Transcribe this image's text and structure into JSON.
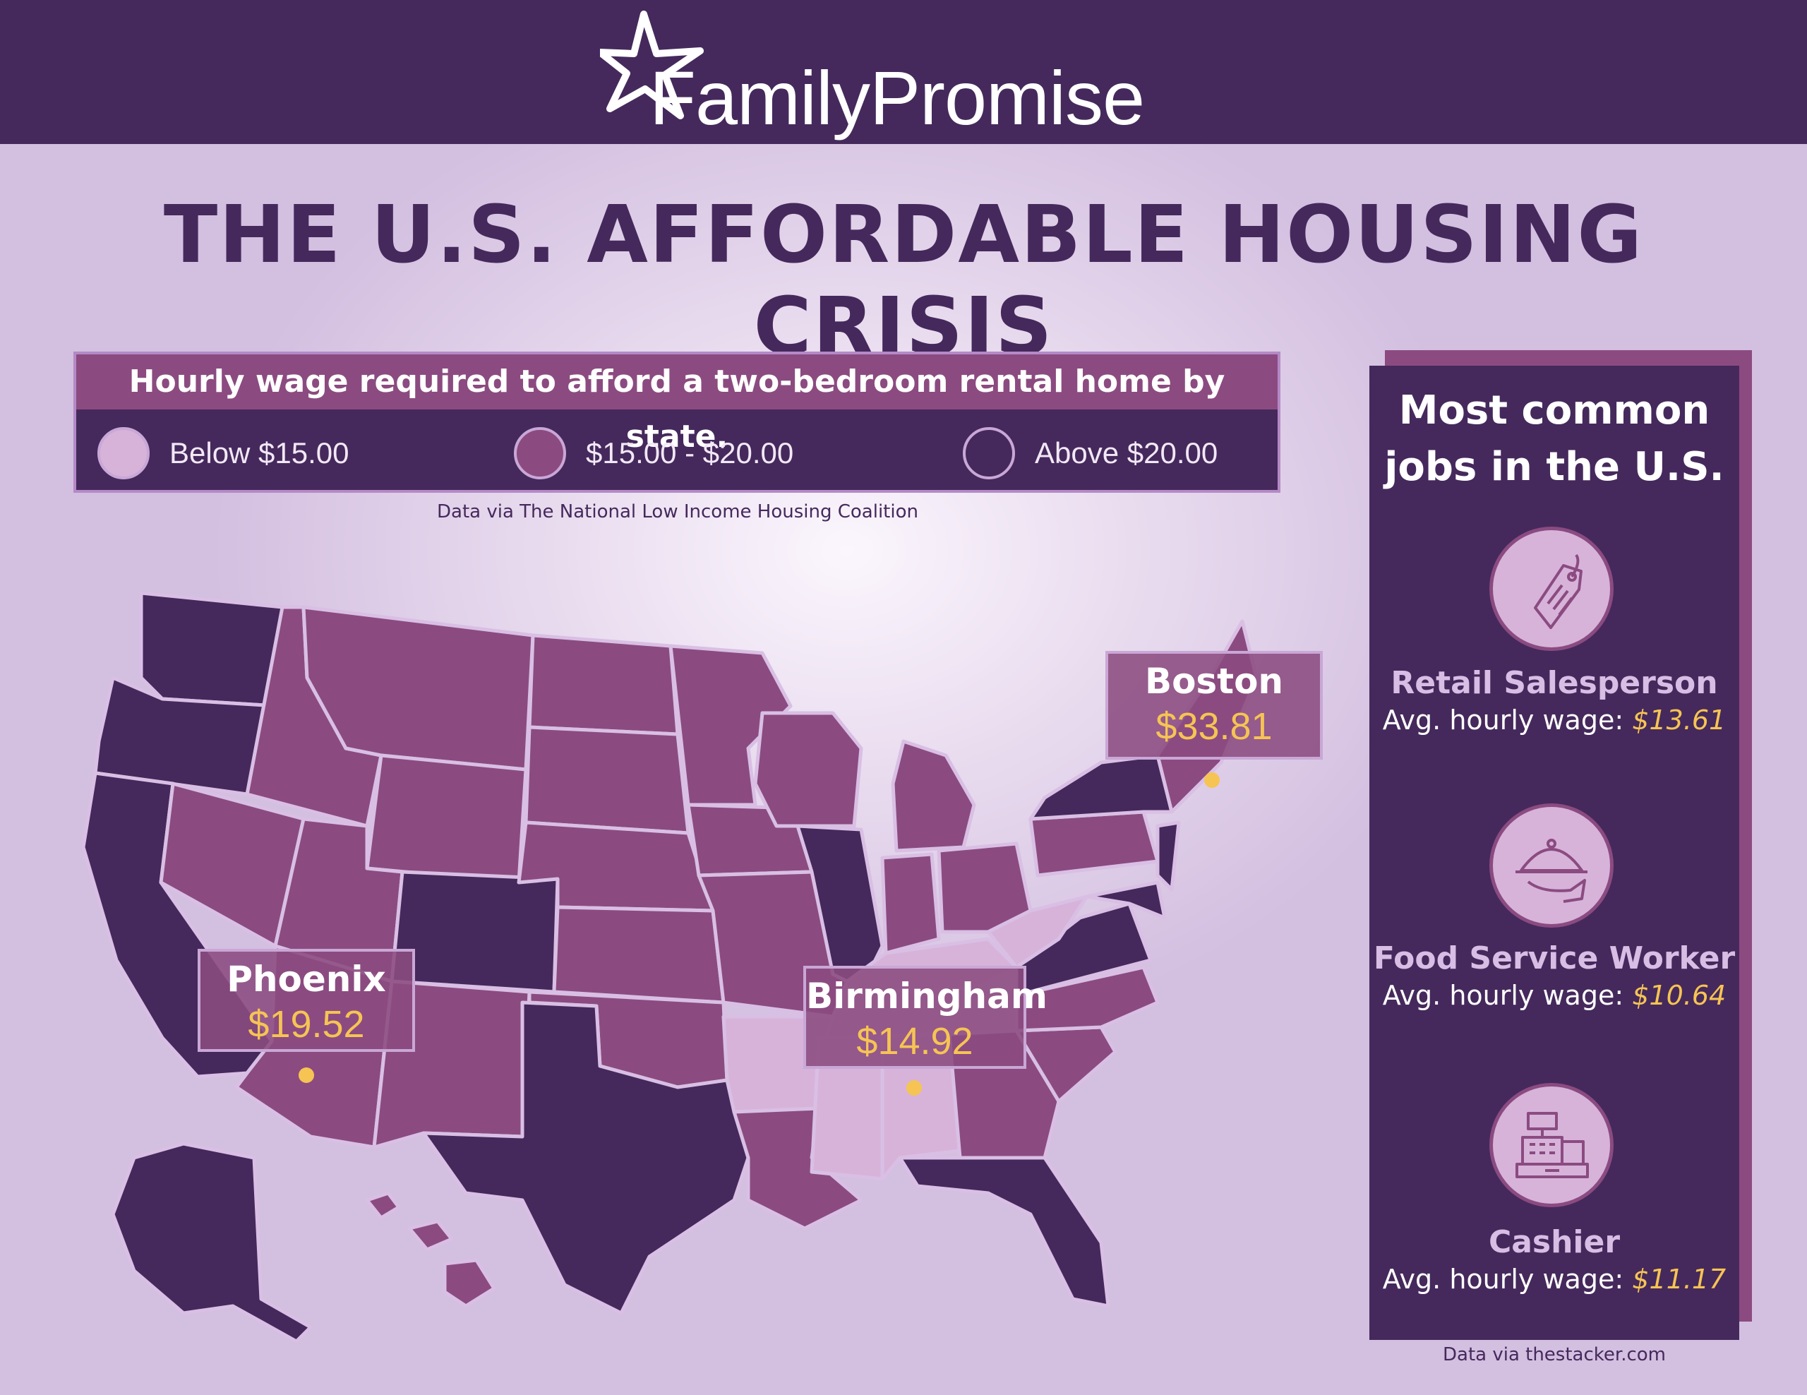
{
  "header": {
    "logo_text": "FamilyPromise"
  },
  "title": "THE U.S. AFFORDABLE HOUSING CRISIS",
  "legend": {
    "heading": "Hourly wage required to afford a two-bedroom rental home by state.",
    "items": [
      {
        "label": "Below $15.00",
        "color": "#d7b3da"
      },
      {
        "label": "$15.00 - $20.00",
        "color": "#8b4b80"
      },
      {
        "label": "Above $20.00",
        "color": "#45295c"
      }
    ],
    "source": "Data via The National Low Income Housing Coalition"
  },
  "callouts": [
    {
      "city": "Boston",
      "wage": "$33.81"
    },
    {
      "city": "Phoenix",
      "wage": "$19.52"
    },
    {
      "city": "Birmingham",
      "wage": "$14.92"
    }
  ],
  "jobs": {
    "heading_line1": "Most common",
    "heading_line2": "jobs in the U.S.",
    "wage_prefix": "Avg. hourly wage:",
    "items": [
      {
        "name": "Retail Salesperson",
        "wage": "$13.61",
        "icon": "price-tag-icon"
      },
      {
        "name": "Food Service Worker",
        "wage": "$10.64",
        "icon": "food-cloche-icon"
      },
      {
        "name": "Cashier",
        "wage": "$11.17",
        "icon": "cash-register-icon"
      }
    ],
    "source": "Data via thestacker.com"
  },
  "colors": {
    "dark": "#45295c",
    "mid": "#8b4b80",
    "light": "#d7b3da",
    "accent": "#f6c453"
  }
}
